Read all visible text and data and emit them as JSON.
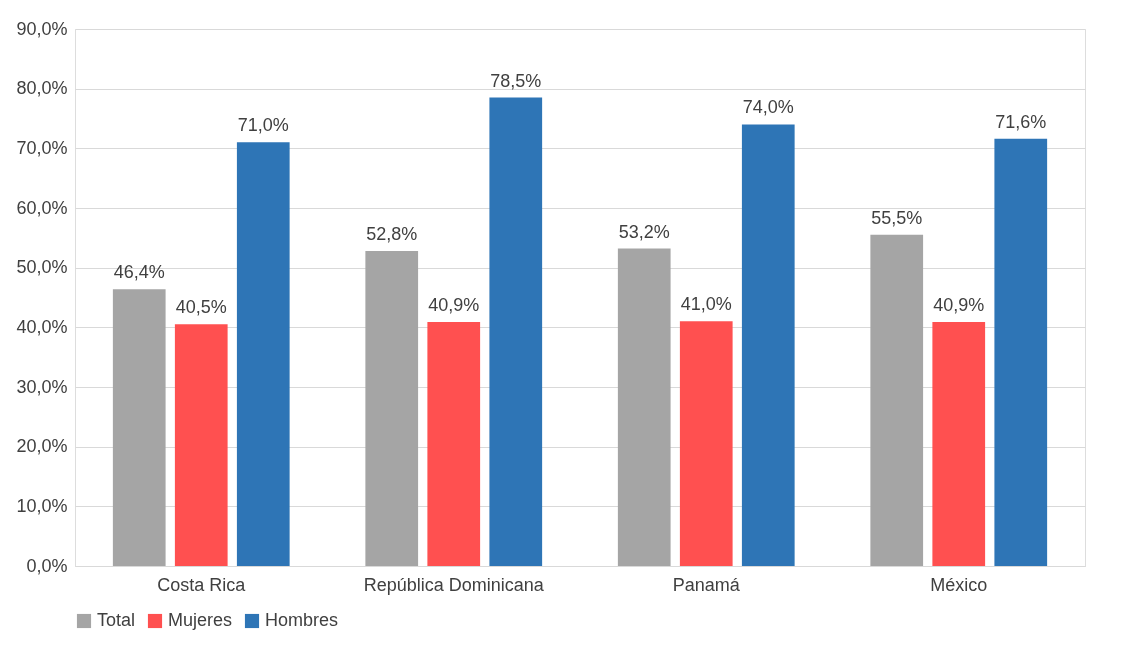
{
  "chart_data": {
    "type": "bar",
    "categories": [
      "Costa Rica",
      "República Dominicana",
      "Panamá",
      "México"
    ],
    "series": [
      {
        "name": "Total",
        "color": "#a5a5a5",
        "values": [
          46.4,
          52.8,
          53.2,
          55.5
        ],
        "value_labels": [
          "46,4%",
          "52,8%",
          "53,2%",
          "55,5%"
        ]
      },
      {
        "name": "Mujeres",
        "color": "#ff5050",
        "values": [
          40.5,
          40.9,
          41.0,
          40.9
        ],
        "value_labels": [
          "40,5%",
          "40,9%",
          "41,0%",
          "40,9%"
        ]
      },
      {
        "name": "Hombres",
        "color": "#2e75b6",
        "values": [
          71.0,
          78.5,
          74.0,
          71.6
        ],
        "value_labels": [
          "71,0%",
          "78,5%",
          "74,0%",
          "71,6%"
        ]
      }
    ],
    "ylim": [
      0,
      90
    ],
    "yticks": [
      {
        "value": 0,
        "label": "0,0%"
      },
      {
        "value": 10,
        "label": "10,0%"
      },
      {
        "value": 20,
        "label": "20,0%"
      },
      {
        "value": 30,
        "label": "30,0%"
      },
      {
        "value": 40,
        "label": "40,0%"
      },
      {
        "value": 50,
        "label": "50,0%"
      },
      {
        "value": 60,
        "label": "60,0%"
      },
      {
        "value": 70,
        "label": "70,0%"
      },
      {
        "value": 80,
        "label": "80,0%"
      },
      {
        "value": 90,
        "label": "90,0%"
      }
    ],
    "grid": "y",
    "legend": "bottom"
  }
}
